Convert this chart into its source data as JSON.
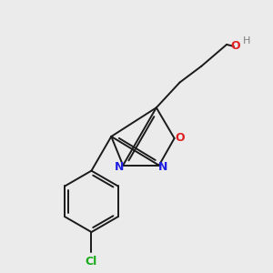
{
  "bg_color": "#ebebeb",
  "bond_color": "#1a1a1a",
  "atom_colors": {
    "N": "#2020e0",
    "O_ring": "#e02020",
    "O_oh": "#e02020",
    "Cl": "#1aaa1a",
    "H": "#808080",
    "C": "#1a1a1a"
  },
  "figsize": [
    3.0,
    3.0
  ],
  "dpi": 100
}
